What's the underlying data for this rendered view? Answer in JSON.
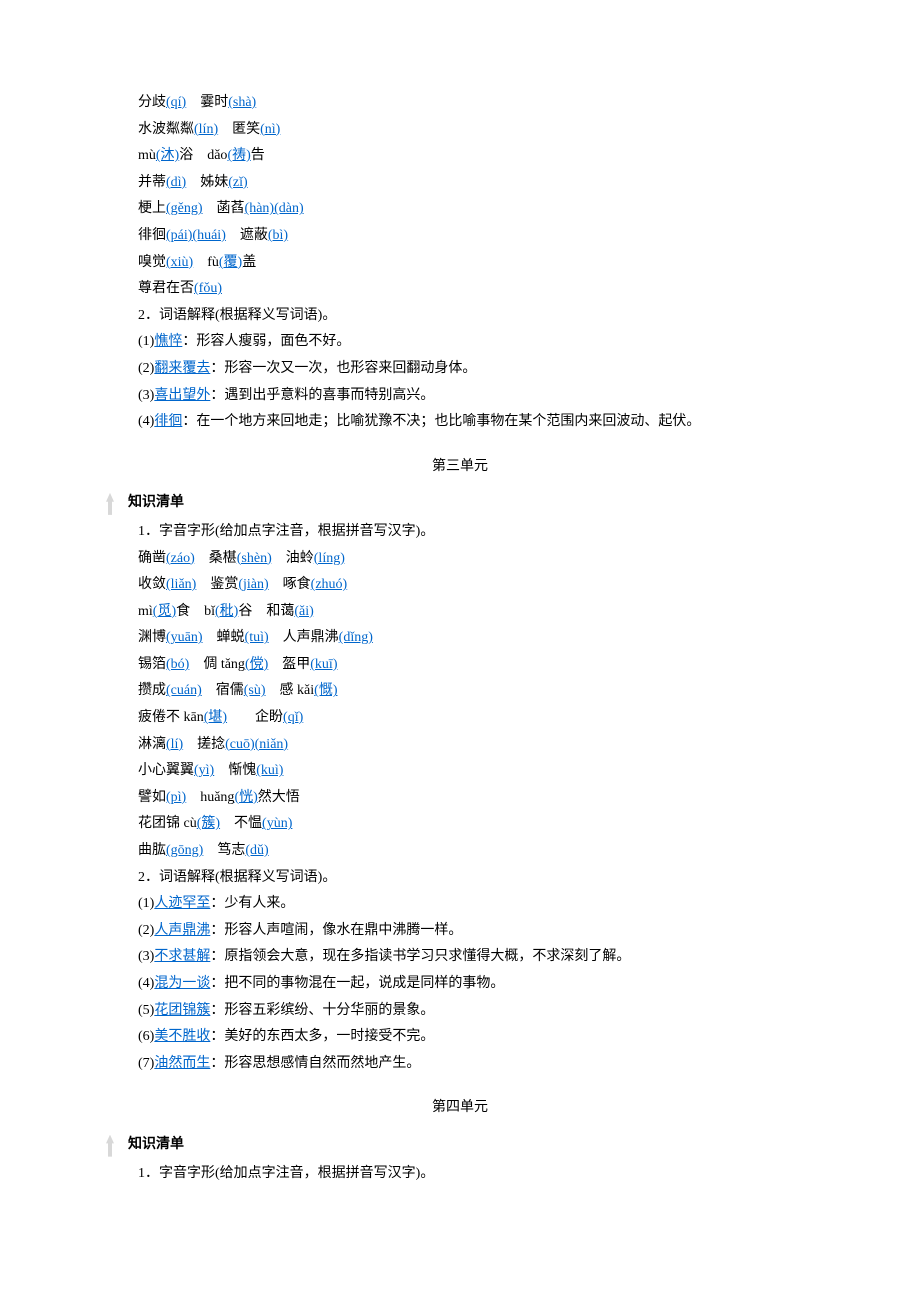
{
  "u2": {
    "l1": {
      "a": "分歧",
      "p": "(qí)",
      "b": "霎时",
      "q": "(shà)"
    },
    "l2": {
      "a": "水波粼粼",
      "p": "(lín)",
      "b": "匿笑",
      "q": "(nì)"
    },
    "l3": {
      "a": "mù",
      "p": "(沐)",
      "a2": "浴",
      "b": "dǎo",
      "q": "(祷)",
      "b2": "告"
    },
    "l4": {
      "a": "并蒂",
      "p": "(dì)",
      "b": "姊妹",
      "q": "(zǐ)"
    },
    "l5": {
      "a": "梗上",
      "p": "(gěng)",
      "b": "菡萏",
      "q": "(hàn)(dàn)"
    },
    "l6": {
      "a": "徘徊",
      "p": "(pái)(huái)",
      "b": "遮蔽",
      "q": "(bì)"
    },
    "l7": {
      "a": "嗅觉",
      "p": "(xiù)",
      "b": "fù",
      "q": "(覆)",
      "b2": "盖"
    },
    "l8": {
      "a": "尊君在否",
      "p": "(fǒu)"
    },
    "h2": "2．词语解释(根据释义写词语)。",
    "d1": {
      "k": "憔悴",
      "v": "：形容人瘦弱，面色不好。"
    },
    "d2": {
      "k": "翻来覆去",
      "v": "：形容一次又一次，也形容来回翻动身体。"
    },
    "d3": {
      "k": "喜出望外",
      "v": "：遇到出乎意料的喜事而特别高兴。"
    },
    "d4": {
      "k": "徘徊",
      "v": "：在一个地方来回地走；比喻犹豫不决；也比喻事物在某个范围内来回波动、起伏。"
    }
  },
  "u3": {
    "title": "第三单元",
    "kb": "知识清单",
    "h1": "1．字音字形(给加点字注音，根据拼音写汉字)。",
    "l1": {
      "a": "确凿",
      "p": "(záo)",
      "b": "桑椹",
      "q": "(shèn)",
      "c": "油蛉",
      "r": "(líng)"
    },
    "l2": {
      "a": "收敛",
      "p": "(liǎn)",
      "b": "鉴赏",
      "q": "(jiàn)",
      "c": "啄食",
      "r": "(zhuó)"
    },
    "l3": {
      "a": "mì",
      "p": "(觅)",
      "a2": "食",
      "b": "bǐ",
      "q": "(秕)",
      "b2": "谷",
      "c": "和蔼",
      "r": "(ǎi)"
    },
    "l4": {
      "a": "渊博",
      "p": "(yuān)",
      "b": "蝉蜕",
      "q": "(tuì)",
      "c": "人声鼎沸",
      "r": "(dǐng)"
    },
    "l5": {
      "a": "锡箔",
      "p": "(bó)",
      "b": "倜 tǎng",
      "q": "(傥)",
      "c": "盔甲",
      "r": "(kuī)"
    },
    "l6": {
      "a": "攒成",
      "p": "(cuán)",
      "b": "宿儒",
      "q": "(sù)",
      "c": "感 kǎi",
      "r": "(慨)"
    },
    "l7": {
      "a": "疲倦不 kān",
      "p": "(堪)",
      "b": "企盼",
      "q": "(qǐ)"
    },
    "l8": {
      "a": "淋漓",
      "p": "(lí)",
      "b": "搓捻",
      "q": "(cuō)(niǎn)"
    },
    "l9": {
      "a": "小心翼翼",
      "p": "(yì)",
      "b": "惭愧",
      "q": "(kuì)"
    },
    "l10": {
      "a": "譬如",
      "p": "(pì)",
      "b": "huǎng",
      "q": "(恍)",
      "b2": "然大悟"
    },
    "l11": {
      "a": "花团锦 cù",
      "p": "(簇)",
      "b": "不愠",
      "q": "(yùn)"
    },
    "l12": {
      "a": "曲肱",
      "p": "(gōng)",
      "b": "笃志",
      "q": "(dǔ)"
    },
    "h2": "2．词语解释(根据释义写词语)。",
    "d1": {
      "k": "人迹罕至",
      "v": "：少有人来。"
    },
    "d2": {
      "k": "人声鼎沸",
      "v": "：形容人声喧闹，像水在鼎中沸腾一样。"
    },
    "d3": {
      "k": "不求甚解",
      "v": "：原指领会大意，现在多指读书学习只求懂得大概，不求深刻了解。"
    },
    "d4": {
      "k": "混为一谈",
      "v": "：把不同的事物混在一起，说成是同样的事物。"
    },
    "d5": {
      "k": "花团锦簇",
      "v": "：形容五彩缤纷、十分华丽的景象。"
    },
    "d6": {
      "k": "美不胜收",
      "v": "：美好的东西太多，一时接受不完。"
    },
    "d7": {
      "k": "油然而生",
      "v": "：形容思想感情自然而然地产生。"
    }
  },
  "u4": {
    "title": "第四单元",
    "kb": "知识清单",
    "h1": "1．字音字形(给加点字注音，根据拼音写汉字)。"
  }
}
